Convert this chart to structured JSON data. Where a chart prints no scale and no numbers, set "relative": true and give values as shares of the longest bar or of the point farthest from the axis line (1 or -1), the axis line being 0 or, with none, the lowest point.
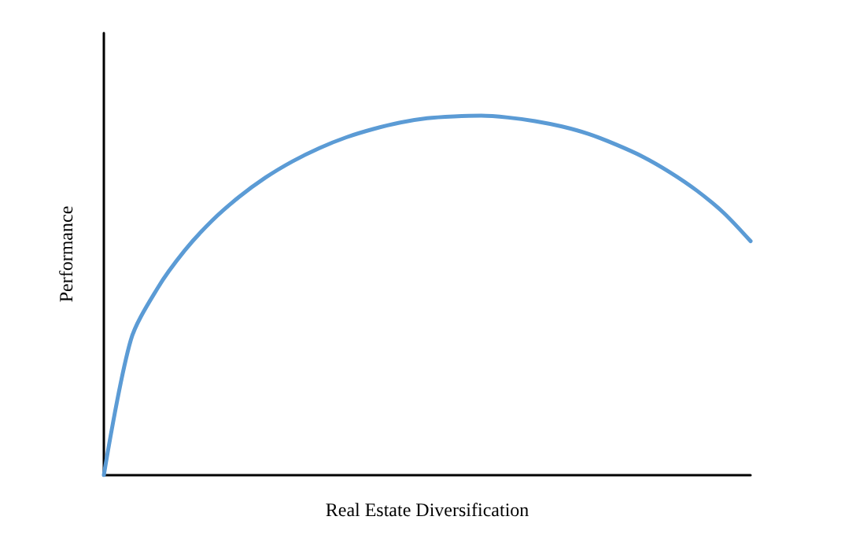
{
  "chart_data": {
    "type": "line",
    "relative": true,
    "xlabel": "Real Estate Diversification",
    "ylabel": "Performance",
    "categories": [
      null,
      null,
      null,
      null,
      null,
      null,
      null,
      null,
      null,
      null,
      null,
      null,
      null,
      null,
      null,
      null,
      null,
      null,
      null,
      null,
      null,
      null,
      null,
      null,
      null
    ],
    "series": [
      {
        "color": "#5b9bd5",
        "values": [
          0,
          0.376,
          0.521,
          0.625,
          0.707,
          0.773,
          0.828,
          0.873,
          0.91,
          0.94,
          0.963,
          0.981,
          0.993,
          0.998,
          1,
          0.995,
          0.985,
          0.97,
          0.949,
          0.92,
          0.886,
          0.843,
          0.792,
          0.73,
          0.651
        ]
      }
    ],
    "marker": "none",
    "line_style": "solid"
  }
}
